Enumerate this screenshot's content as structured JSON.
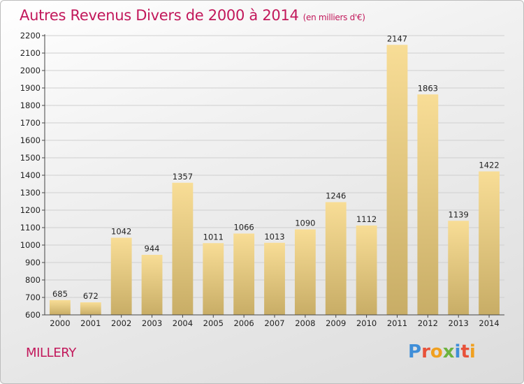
{
  "header": {
    "title": "Autres Revenus Divers de 2000 à 2014",
    "subtitle": "(en milliers d'€)"
  },
  "place": "MILLERY",
  "logo": {
    "letters": [
      "P",
      "r",
      "o",
      "x",
      "i",
      "t",
      "i"
    ],
    "colors": [
      "#3f8ed8",
      "#e8523a",
      "#f0a020",
      "#6cb33f",
      "#3f8ed8",
      "#e8523a",
      "#f0a020"
    ]
  },
  "chart_data": {
    "type": "bar",
    "title": "Autres Revenus Divers de 2000 à 2014",
    "subtitle": "(en milliers d'€)",
    "categories": [
      "2000",
      "2001",
      "2002",
      "2003",
      "2004",
      "2005",
      "2006",
      "2007",
      "2008",
      "2009",
      "2010",
      "2011",
      "2012",
      "2013",
      "2014"
    ],
    "values": [
      685,
      672,
      1042,
      944,
      1357,
      1011,
      1066,
      1013,
      1090,
      1246,
      1112,
      2147,
      1863,
      1139,
      1422
    ],
    "yticks": [
      600,
      700,
      800,
      900,
      1000,
      1100,
      1200,
      1300,
      1400,
      1500,
      1600,
      1700,
      1800,
      1900,
      2000,
      2100,
      2200
    ],
    "ylim": [
      600,
      2200
    ],
    "grid": true,
    "bar_color_light": "#f8dd96",
    "bar_color_dark": "#c8ad66",
    "xlabel": "",
    "ylabel": ""
  }
}
